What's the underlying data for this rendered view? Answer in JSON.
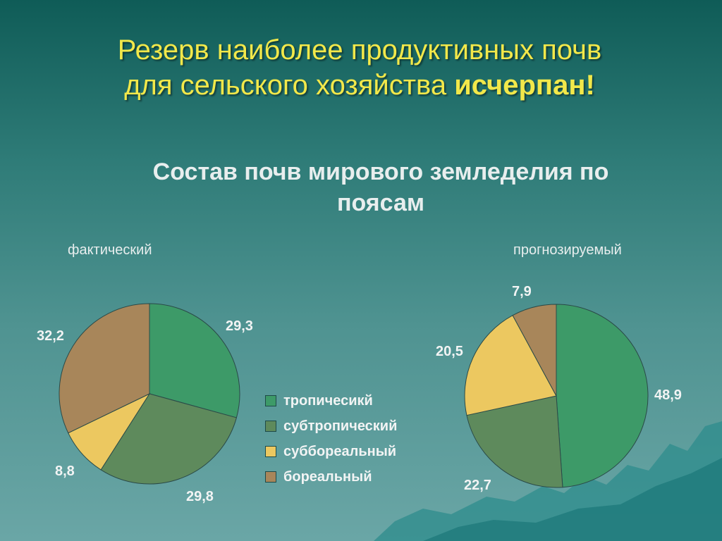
{
  "slide": {
    "title_line1": "Резерв наиболее продуктивных почв",
    "title_line2_prefix": "для сельского хозяйства ",
    "title_line2_bold": "исчерпан!"
  },
  "chart_data": [
    {
      "type": "pie",
      "title": "Состав почв мирового земледелия по поясам",
      "subtitle": "фактический",
      "categories": [
        "тропичесикй",
        "субтропический",
        "суббореальный",
        "бореальный"
      ],
      "values": [
        29.3,
        29.8,
        8.8,
        32.2
      ],
      "value_labels": [
        "29,3",
        "29,8",
        "8,8",
        "32,2"
      ],
      "colors": [
        "#3d9a68",
        "#5e8a5c",
        "#ecc860",
        "#a8865a"
      ],
      "legend_position": "center"
    },
    {
      "type": "pie",
      "title": "Состав почв мирового земледелия по поясам",
      "subtitle": "прогнозируемый",
      "categories": [
        "тропичесикй",
        "субтропический",
        "суббореальный",
        "бореальный"
      ],
      "values": [
        48.9,
        22.7,
        20.5,
        7.9
      ],
      "value_labels": [
        "48,9",
        "22,7",
        "20,5",
        "7,9"
      ],
      "colors": [
        "#3d9a68",
        "#5e8a5c",
        "#ecc860",
        "#a8865a"
      ],
      "legend_position": "center"
    }
  ],
  "legend": {
    "items": [
      {
        "label": "тропичесикй",
        "color": "#3d9a68"
      },
      {
        "label": "субтропический",
        "color": "#5e8a5c"
      },
      {
        "label": "суббореальный",
        "color": "#ecc860"
      },
      {
        "label": "бореальный",
        "color": "#a8865a"
      }
    ]
  }
}
